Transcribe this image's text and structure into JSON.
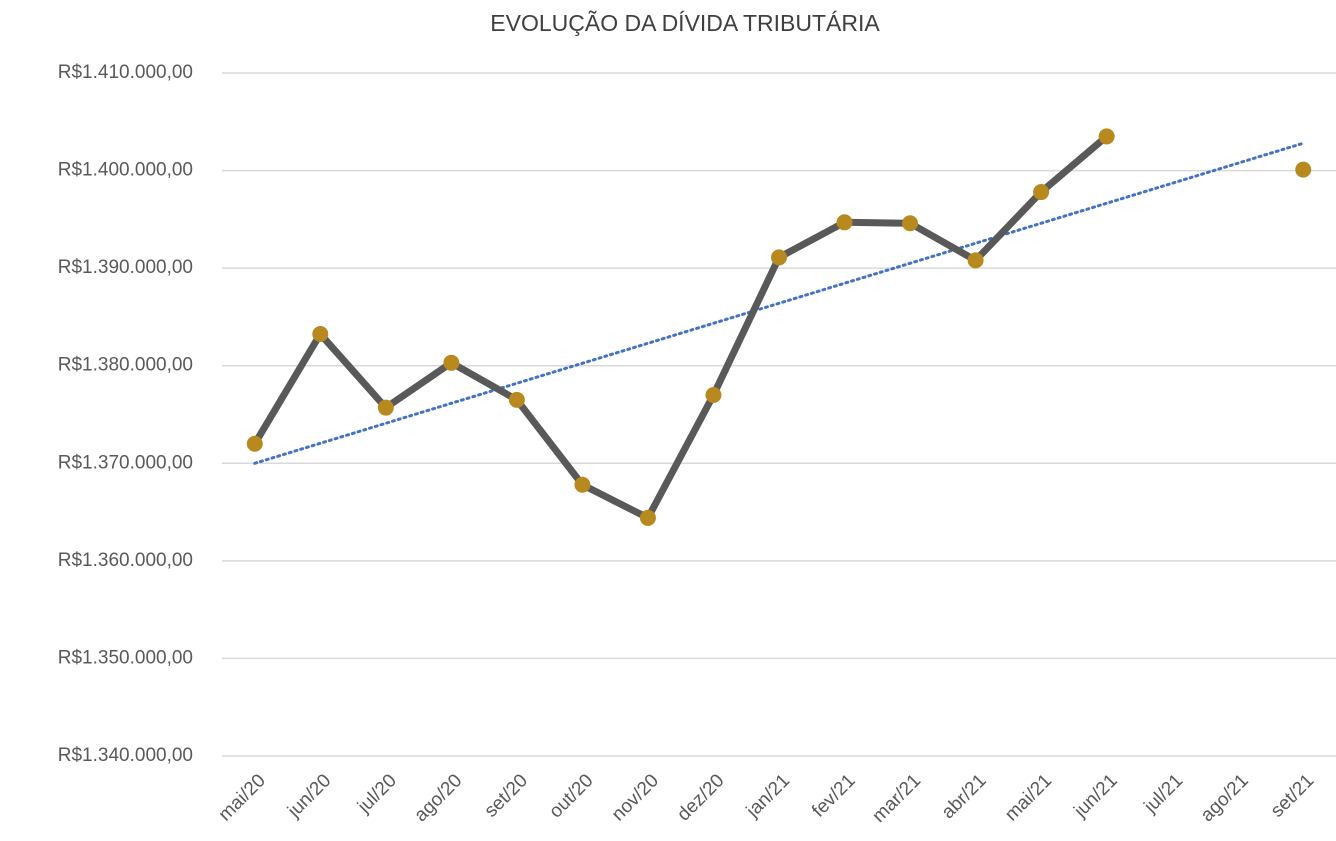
{
  "chart_data": {
    "type": "line",
    "title": "EVOLUÇÃO DA DÍVIDA TRIBUTÁRIA",
    "categories": [
      "mai/20",
      "jun/20",
      "jul/20",
      "ago/20",
      "set/20",
      "out/20",
      "nov/20",
      "dez/20",
      "jan/21",
      "fev/21",
      "mar/21",
      "abr/21",
      "mai/21",
      "jun/21",
      "jul/21",
      "ago/21",
      "set/21"
    ],
    "series": [
      {
        "color": "#595959",
        "marker_color": "#b8891f",
        "values": [
          1372000,
          1383250,
          1375700,
          1380300,
          1376500,
          1367800,
          1364400,
          1377000,
          1391100,
          1394700,
          1394600,
          1390800,
          1397800,
          1403500,
          null,
          null,
          1400100
        ]
      }
    ],
    "trendline": {
      "color": "#4472c4",
      "style": "dotted",
      "values": [
        1370000,
        1402800
      ]
    },
    "ylim": [
      1340000,
      1410000
    ],
    "yticks": [
      {
        "value": 1340000,
        "label": "R$1.340.000,00"
      },
      {
        "value": 1350000,
        "label": "R$1.350.000,00"
      },
      {
        "value": 1360000,
        "label": "R$1.360.000,00"
      },
      {
        "value": 1370000,
        "label": "R$1.370.000,00"
      },
      {
        "value": 1380000,
        "label": "R$1.380.000,00"
      },
      {
        "value": 1390000,
        "label": "R$1.390.000,00"
      },
      {
        "value": 1400000,
        "label": "R$1.400.000,00"
      },
      {
        "value": 1410000,
        "label": "R$1.410.000,00"
      }
    ],
    "grid": true
  }
}
